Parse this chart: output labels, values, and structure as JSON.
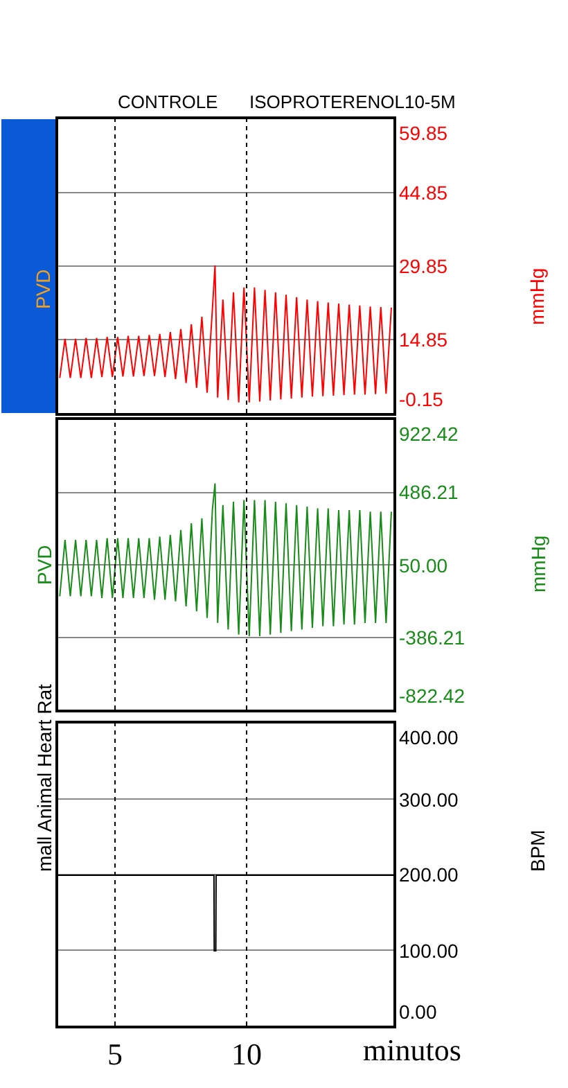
{
  "chart_data": [
    {
      "type": "line",
      "annotations": [
        "PVD"
      ],
      "ylabel": "mmHg",
      "xlim": [
        2.84,
        15.58
      ],
      "ylim": [
        -0.15,
        59.85
      ],
      "yticks": [
        {
          "value": -0.15,
          "label": "-0.15"
        },
        {
          "value": 14.85,
          "label": "14.85"
        },
        {
          "value": 29.85,
          "label": "29.85"
        },
        {
          "value": 44.85,
          "label": "44.85"
        },
        {
          "value": 59.85,
          "label": "59.85"
        }
      ],
      "tick_labels": "y",
      "grid": "y",
      "marker": "none",
      "line_style": "solid",
      "ref_lines": [
        {
          "axis": "x",
          "value": 5,
          "label": "CONTROLE",
          "line_style": "dotted"
        },
        {
          "axis": "x",
          "value": 10,
          "label": "ISOPROTERENOL10-5M",
          "line_style": "dotted"
        }
      ],
      "series": [
        {
          "color": "#ff0000",
          "x": [
            2.9,
            3.1,
            3.3,
            3.5,
            3.7,
            3.9,
            4.1,
            4.3,
            4.5,
            4.7,
            4.9,
            5.1,
            5.3,
            5.5,
            5.7,
            5.9,
            6.1,
            6.3,
            6.5,
            6.7,
            6.9,
            7.1,
            7.3,
            7.5,
            7.7,
            7.9,
            8.1,
            8.3,
            8.5,
            8.7,
            8.8,
            8.9,
            9.1,
            9.3,
            9.5,
            9.7,
            9.9,
            10.1,
            10.3,
            10.5,
            10.7,
            10.9,
            11.1,
            11.3,
            11.5,
            11.7,
            11.9,
            12.1,
            12.3,
            12.5,
            12.7,
            12.9,
            13.1,
            13.3,
            13.5,
            13.7,
            13.9,
            14.1,
            14.3,
            14.5,
            14.7,
            14.9,
            15.1,
            15.3,
            15.5
          ],
          "values": [
            7,
            15,
            7,
            15,
            7,
            15.2,
            7,
            15.2,
            7.2,
            15.4,
            7.2,
            15.4,
            7.3,
            15.6,
            7.3,
            15.6,
            7.4,
            15.8,
            7.4,
            16,
            7.2,
            16.4,
            6.8,
            17,
            6,
            18,
            5,
            19.5,
            4,
            21,
            30,
            3,
            23,
            2.5,
            24.5,
            2,
            25.5,
            2,
            25.5,
            2.2,
            25,
            2.4,
            24.5,
            2.6,
            24,
            2.8,
            23.5,
            3,
            23,
            3.2,
            22.7,
            3.3,
            22.4,
            3.4,
            22.2,
            3.5,
            22,
            3.6,
            21.8,
            3.6,
            21.6,
            3.7,
            21.5,
            3.8,
            21.4
          ]
        }
      ]
    },
    {
      "type": "line",
      "annotations": [
        "PVD"
      ],
      "ylabel": "mmHg",
      "xlim": [
        2.84,
        15.58
      ],
      "ylim": [
        -822.42,
        922.42
      ],
      "yticks": [
        {
          "value": -822.42,
          "label": "-822.42"
        },
        {
          "value": -386.21,
          "label": "-386.21"
        },
        {
          "value": 50,
          "label": "50.00"
        },
        {
          "value": 486.21,
          "label": "486.21"
        },
        {
          "value": 922.42,
          "label": "922.42"
        }
      ],
      "tick_labels": "y",
      "grid": "y",
      "marker": "none",
      "line_style": "solid",
      "ref_lines": [
        {
          "axis": "x",
          "value": 5,
          "line_style": "dotted"
        },
        {
          "axis": "x",
          "value": 10,
          "line_style": "dotted"
        }
      ],
      "series": [
        {
          "color": "#188c18",
          "x": [
            2.9,
            3.1,
            3.3,
            3.5,
            3.7,
            3.9,
            4.1,
            4.3,
            4.5,
            4.7,
            4.9,
            5.1,
            5.3,
            5.5,
            5.7,
            5.9,
            6.1,
            6.3,
            6.5,
            6.7,
            6.9,
            7.1,
            7.3,
            7.5,
            7.7,
            7.9,
            8.1,
            8.3,
            8.5,
            8.7,
            8.8,
            8.9,
            9.1,
            9.3,
            9.5,
            9.7,
            9.9,
            10.1,
            10.3,
            10.5,
            10.7,
            10.9,
            11.1,
            11.3,
            11.5,
            11.7,
            11.9,
            12.1,
            12.3,
            12.5,
            12.7,
            12.9,
            13.1,
            13.3,
            13.5,
            13.7,
            13.9,
            14.1,
            14.3,
            14.5,
            14.7,
            14.9,
            15.1,
            15.3,
            15.5
          ],
          "values": [
            -140,
            200,
            -140,
            200,
            -140,
            200,
            -140,
            200,
            -150,
            210,
            -150,
            210,
            -150,
            210,
            -150,
            210,
            -150,
            210,
            -160,
            220,
            -160,
            230,
            -170,
            260,
            -200,
            300,
            -230,
            330,
            -270,
            380,
            540,
            -300,
            410,
            -340,
            430,
            -370,
            440,
            -380,
            440,
            -380,
            440,
            -370,
            430,
            -360,
            420,
            -350,
            410,
            -340,
            400,
            -330,
            390,
            -320,
            390,
            -320,
            380,
            -310,
            380,
            -310,
            380,
            -300,
            370,
            -300,
            370,
            -300,
            370
          ]
        }
      ]
    },
    {
      "type": "line",
      "annotations": [
        "mall Animal Heart Rat"
      ],
      "ylabel": "BPM",
      "xlabel": "minutos",
      "xlim": [
        2.84,
        15.58
      ],
      "xticks": [
        5,
        10
      ],
      "ylim": [
        0,
        400
      ],
      "yticks": [
        {
          "value": 0,
          "label": "0.00"
        },
        {
          "value": 100,
          "label": "100.00"
        },
        {
          "value": 200,
          "label": "200.00"
        },
        {
          "value": 300,
          "label": "300.00"
        },
        {
          "value": 400,
          "label": "400.00"
        }
      ],
      "grid": "y",
      "marker": "none",
      "line_style": "solid",
      "ref_lines": [
        {
          "axis": "x",
          "value": 5,
          "line_style": "dotted"
        },
        {
          "axis": "x",
          "value": 10,
          "line_style": "dotted"
        }
      ],
      "series": [
        {
          "color": "#000000",
          "x": [
            2.84,
            8.76,
            8.77,
            8.83,
            8.84,
            15.58
          ],
          "values": [
            199,
            199,
            99,
            99,
            199,
            199
          ]
        }
      ]
    }
  ]
}
